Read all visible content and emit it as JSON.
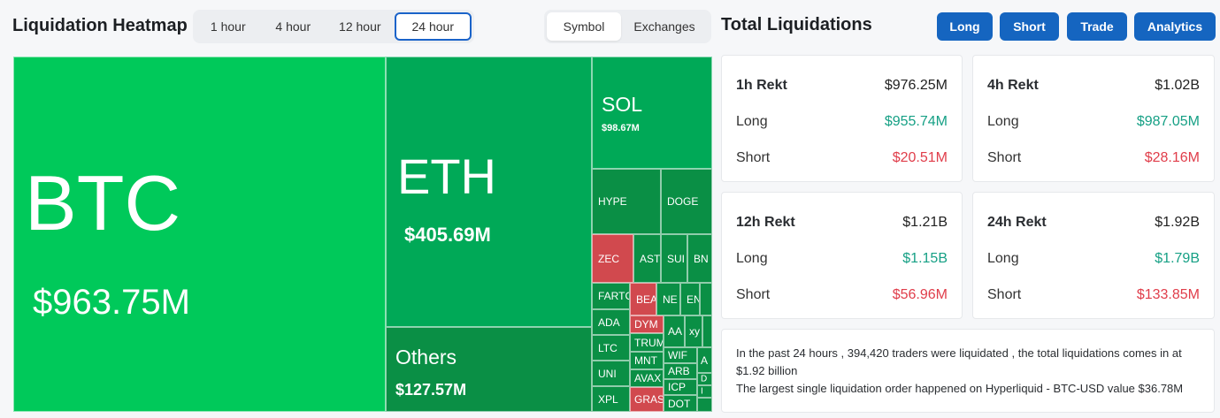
{
  "header": {
    "title": "Liquidation Heatmap",
    "time_tabs": [
      "1 hour",
      "4 hour",
      "12 hour",
      "24 hour"
    ],
    "active_time_tab": "24 hour",
    "view_tabs": [
      "Symbol",
      "Exchanges"
    ],
    "active_view_tab": "Symbol"
  },
  "right_header": {
    "title": "Total Liquidations",
    "buttons": [
      "Long",
      "Short",
      "Trade",
      "Analytics"
    ]
  },
  "heatmap": {
    "btc": {
      "symbol": "BTC",
      "value": "$963.75M"
    },
    "eth": {
      "symbol": "ETH",
      "value": "$405.69M"
    },
    "others": {
      "symbol": "Others",
      "value": "$127.57M"
    },
    "sol": {
      "symbol": "SOL",
      "value": "$98.67M"
    },
    "hype": "HYPE",
    "doge": "DOGE",
    "zec": "ZEC",
    "ast": "AST",
    "sui": "SUI",
    "bn": "BN",
    "fartcoin": "FARTC",
    "bea": "BEA",
    "ne": "NE",
    "en": "EN",
    "ada": "ADA",
    "ltc": "LTC",
    "uni": "UNI",
    "xpl": "XPL",
    "dym": "DYM",
    "trump": "TRUM",
    "mnt": "MNT",
    "avax": "AVAX",
    "gras": "GRAS",
    "aa": "AA",
    "xy": "xy",
    "wif": "WIF",
    "arb": "ARB",
    "icp": "ICP",
    "dot": "DOT",
    "a2": "A",
    "d1": "D",
    "i1": "I",
    "colors": {
      "primary": "#00c95a",
      "secondary": "#00a957",
      "dark": "#0a8f45",
      "negative": "#d1494e"
    }
  },
  "totals": {
    "cards": [
      {
        "period": "1h Rekt",
        "total": "$976.25M",
        "long_label": "Long",
        "long": "$955.74M",
        "short_label": "Short",
        "short": "$20.51M"
      },
      {
        "period": "4h Rekt",
        "total": "$1.02B",
        "long_label": "Long",
        "long": "$987.05M",
        "short_label": "Short",
        "short": "$28.16M"
      },
      {
        "period": "12h Rekt",
        "total": "$1.21B",
        "long_label": "Long",
        "long": "$1.15B",
        "short_label": "Short",
        "short": "$56.96M"
      },
      {
        "period": "24h Rekt",
        "total": "$1.92B",
        "long_label": "Long",
        "long": "$1.79B",
        "short_label": "Short",
        "short": "$133.85M"
      }
    ],
    "summary_line1": "In the past 24 hours , 394,420 traders were liquidated , the total liquidations comes in at $1.92 billion",
    "summary_line2": "The largest single liquidation order happened on Hyperliquid - BTC-USD value $36.78M"
  }
}
